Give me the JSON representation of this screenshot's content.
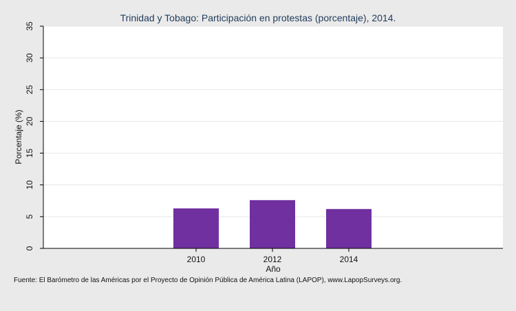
{
  "chart_data": {
    "type": "bar",
    "title": "Trinidad y Tobago: Participación en protestas (porcentaje), 2014.",
    "xlabel": "Año",
    "ylabel": "Porcentaje (%)",
    "categories": [
      "2010",
      "2012",
      "2014"
    ],
    "values": [
      6.3,
      7.6,
      6.2
    ],
    "ylim": [
      0,
      35
    ],
    "yticks": [
      "0",
      "5",
      "10",
      "15",
      "20",
      "25",
      "30",
      "35"
    ],
    "grid": true,
    "legend": "none",
    "bar_color": "#7030a0",
    "source": "Fuente: El Barómetro de las Américas por el Proyecto de Opinión Pública de América Latina (LAPOP), www.LapopSurveys.org."
  }
}
